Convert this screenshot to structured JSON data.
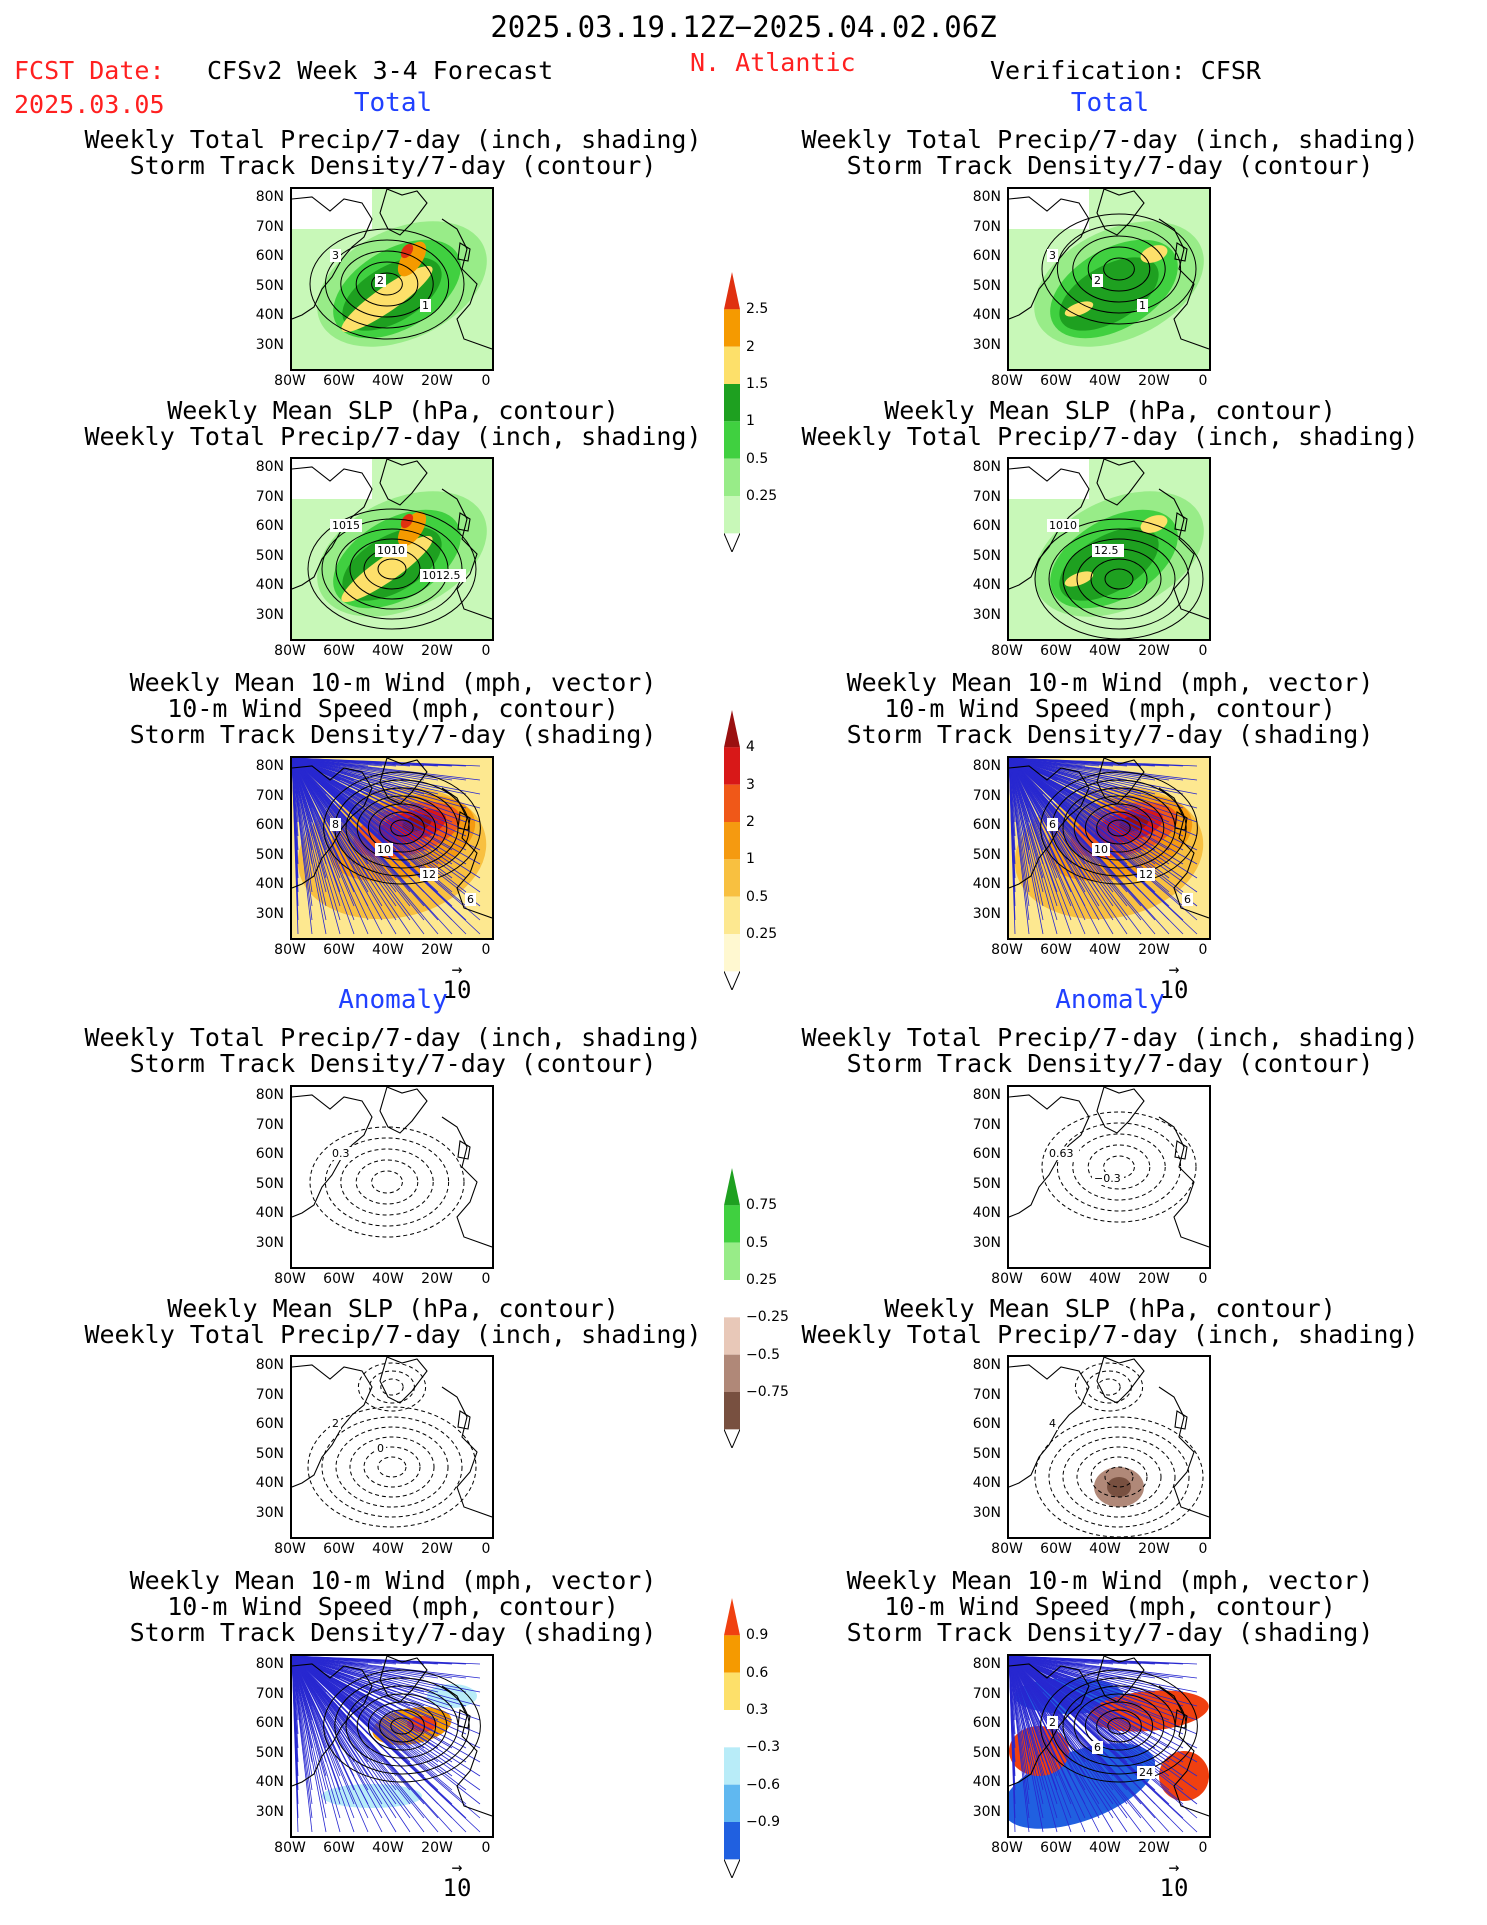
{
  "header": {
    "period": "2025.03.19.12Z−2025.04.02.06Z",
    "fcst_label": "FCST Date:",
    "fcst_date": "2025.03.05",
    "model": "CFSv2 Week 3-4 Forecast",
    "region": "N. Atlantic",
    "verification": "Verification: CFSR"
  },
  "sections": {
    "total": "Total",
    "anomaly": "Anomaly"
  },
  "titles": {
    "precip_storm": [
      "Weekly Total Precip/7-day (inch, shading)",
      "Storm Track Density/7-day (contour)"
    ],
    "slp_precip": [
      "Weekly Mean SLP (hPa, contour)",
      "Weekly Total Precip/7-day (inch, shading)"
    ],
    "wind": [
      "Weekly Mean 10-m Wind (mph, vector)",
      "10-m Wind Speed (mph, contour)",
      "Storm Track Density/7-day (shading)"
    ]
  },
  "axes": {
    "lat": [
      "80N",
      "70N",
      "60N",
      "50N",
      "40N",
      "30N"
    ],
    "lon": [
      "80W",
      "60W",
      "40W",
      "20W",
      "0"
    ]
  },
  "vector_ref": "10",
  "colorbars": {
    "precip_total": {
      "ticks": [
        "2.5",
        "2",
        "1.5",
        "1",
        "0.5",
        "0.25"
      ],
      "colors": [
        "#e03010",
        "#f59a00",
        "#fde06a",
        "#1ea020",
        "#40d040",
        "#98ec88",
        "#c8f8b8"
      ]
    },
    "storm_total": {
      "ticks": [
        "4",
        "3",
        "2",
        "1",
        "0.5",
        "0.25"
      ],
      "colors": [
        "#9a1010",
        "#d81818",
        "#f05818",
        "#f59a10",
        "#f8c040",
        "#fde890",
        "#fff8d0"
      ]
    },
    "precip_anom": {
      "ticks": [
        "0.75",
        "0.5",
        "0.25",
        "−0.25",
        "−0.5",
        "−0.75"
      ],
      "colors": [
        "#1ea020",
        "#40d040",
        "#98ec88",
        "#ffffff",
        "#e8c8b8",
        "#b08878",
        "#785040"
      ]
    },
    "storm_anom": {
      "ticks": [
        "0.9",
        "0.6",
        "0.3",
        "−0.3",
        "−0.6",
        "−0.9"
      ],
      "colors": [
        "#f04010",
        "#f59a00",
        "#fde06a",
        "#ffffff",
        "#b8ecf8",
        "#60b8f0",
        "#2060e0"
      ]
    }
  },
  "contour_labels": {
    "f_precip_total": [
      "3",
      "2",
      "1"
    ],
    "v_precip_total": [
      "3",
      "2",
      "1"
    ],
    "f_slp_total": [
      "1015",
      "1010",
      "1012.5"
    ],
    "v_slp_total": [
      "1010",
      "12.5"
    ],
    "f_wind_total": [
      "8",
      "10",
      "12",
      "6"
    ],
    "v_wind_total": [
      "6",
      "10",
      "12",
      "6"
    ],
    "f_precip_anom": [
      "0.3"
    ],
    "v_precip_anom": [
      "0.63",
      "−0.3"
    ],
    "f_slp_anom": [
      "2",
      "0"
    ],
    "v_slp_anom": [
      "4"
    ],
    "v_wind_anom": [
      "2",
      "6",
      "24"
    ]
  }
}
